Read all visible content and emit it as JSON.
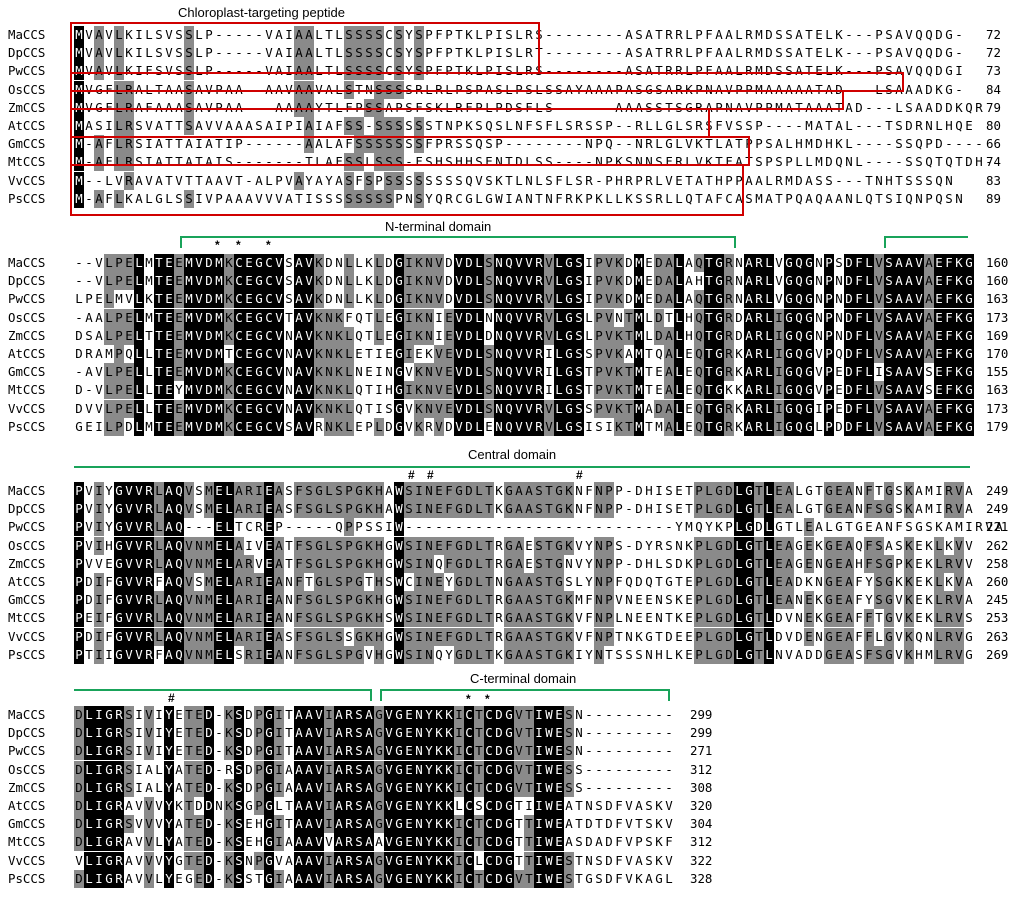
{
  "domain_labels": {
    "ctp": "Chloroplast-targeting peptide",
    "nterm": "N-terminal domain",
    "central": "Central domain",
    "cterm": "C-terminal domain"
  },
  "colors": {
    "black": "#000000",
    "gray": "#8a8a8a",
    "green": "#19a35a",
    "red": "#d00000"
  },
  "markers": {
    "star": "*",
    "hash": "#"
  },
  "blocks": [
    {
      "rows": [
        {
          "name": "MaCCS",
          "seq": "MVAVLKILSVSSLP-----VAIAALTLSSSSCSYSPFPTKLPISLRS--------ASATRRLPFAALRMDSSATELK---PSAVQQDG-",
          "end": "72"
        },
        {
          "name": "DpCCS",
          "seq": "MVAVLKILSVSSLP-----VAIAALTLSSSSCSYSPFPTKLPISLRT--------ASATRRLPFAALRMDSSATELK---PSAVQQDG-",
          "end": "72"
        },
        {
          "name": "PwCCS",
          "seq": "MVAVLKIFSVSSLP-----VAIAALTLSSSSCSYSPFPTKLPISLRS--------ASATRRLPFAALRMDSSATELK---PSAVQQDGI",
          "end": "73"
        },
        {
          "name": "OsCCS",
          "seq": "MVGFLRALTAASAVPAA--AAVAAVALSTNSSSSRLRLPSPASLPSLSSAYAAAPASGSARKPNAVPPMAAAAATAD---LSAAADKG-",
          "end": "84"
        },
        {
          "name": "ZmCCS",
          "seq": "MVGFLRAFAAASAVPAA---AAAAYTLFPSSAPSFSKLRFPLPDSFLS------AAASSTSGRAPNAVPPMATAAATAD---LSAADDKQR",
          "end": "79"
        },
        {
          "name": "AtCCS",
          "seq": "MASILRSVATTSAVVAAASAIPIAIAFSS-SSSSSSTNPKSQSLNFSFLSRSSP--RLLGLSRSFVSSP----MATAL---TSDRNLHQE",
          "end": "80"
        },
        {
          "name": "GmCCS",
          "seq": "M-AFLRSIATTAIATIP------AALAFSSSSSSSFPRSSQSP--------NPQ--NRLGLVKTLATPPSALHMDHKL----SSQPD----",
          "end": "66"
        },
        {
          "name": "MtCCS",
          "seq": "M-AFLRSIATTATAIS-------TLAFSSLSSS-FSHSHHSENTDLSS----NPKSNNSFRLVKTFATSPSPLLMDQNL----SSQTQTDH-",
          "end": "74"
        },
        {
          "name": "VvCCS",
          "seq": "M--LVRAVATVTTAAVT-ALPVAYAYASFSPSSSSSSSSQVSKTLNLSFLSR-PHRPRLVETATHPPAALRMDASS---TNHTSSSQN",
          "end": "83"
        },
        {
          "name": "PsCCS",
          "seq": "M-AFLKALGLSSIVPAAAVVVATISSSSSSSSPNSYQRCGLGWIANTNFRKPKLLKSSRLLQTAFCASMATPQAQAANLQTSIQNPQSN",
          "end": "89"
        }
      ]
    },
    {
      "rows": [
        {
          "name": "MaCCS",
          "seq": "--VLPELMTEEMVDMKCEGCVSAVKDNLLKLDGIKNVDVDLSNQVVRVLGSIPVKDMEDALAQTGRNARLVGQGNPSDFLVSAAVAEFKG",
          "end": "160"
        },
        {
          "name": "DpCCS",
          "seq": "--VLPELMTEEMVDMKCEGCVSAVKDNLLKLDGIKNVDVDLSNQVVRVLGSIPVKDMEDALAHTGRNARLVGQGNPNDFLVSAAVAEFKG",
          "end": "160"
        },
        {
          "name": "PwCCS",
          "seq": "LPELMVLKTEEMVDMKCEGCVSAVKDNLLKLDGIKNVDVDLSNQVVRVLGSIPVKDMEDALAQTGRNARLVGQGNPNDFLVSAAVAEFKG",
          "end": "163"
        },
        {
          "name": "OsCCS",
          "seq": "-AALPELMTEEMVDMKCEGCVTAVKNKFQTLEGIKNIEVDLNNQVVRVLGSLPVNTMLDTLHQTGRDARLIGQGNPNDFLVSAAVAEFKG",
          "end": "173"
        },
        {
          "name": "ZmCCS",
          "seq": "DSALPELTTEEMVDMKCEGCVNAVKNKLQTLEGIKNIEVDLDNQVVRVLGSLPVKTMLDALHQTGRDARLIGQGNPNDFLVSAAVAEFKG",
          "end": "169"
        },
        {
          "name": "AtCCS",
          "seq": "DRAMPQLLTEEMVDMTCEGCVNAVKNKLETIEGIEKVEVDLSNQVVRILGSSPVKAMTQALEQTGRKARLIGQGVPQDFLVSAAVAEFKG",
          "end": "170"
        },
        {
          "name": "GmCCS",
          "seq": "-AVLPELLTEEMVDMKCEGCVNAVKNKLNEINGVKNVEVDLSNQVVRILGSTPVKTMTEALEQTGRKARLIGQGVPEDFLISAAVSEFKG",
          "end": "155"
        },
        {
          "name": "MtCCS",
          "seq": "D-VLPELLTEYMVDMKCEGCVNAVKNKLQTIHGIKNVEVDLSNQVVRILGSTPVKTMTEALEQTGKKARLIGQGVPEDFLVSAAVSEFKG",
          "end": "163"
        },
        {
          "name": "VvCCS",
          "seq": "DVVLPELLTEEMVDMKCEGCVNAVKNKLQTISGVKNVEVDLSNQVVRVLGSSPVKTMADALEQTGRKARLIGQGIPEDFLVSAAVAEFKG",
          "end": "173"
        },
        {
          "name": "PsCCS",
          "seq": "GEILPDLMTEEMVDMKCEGCVSAVRNKLEPLDGVKRVDVDLENQVVRVLGSISIKTMTMALEQTGRKARLIGQGLPDDFLVSAAVAEFKG",
          "end": "179"
        }
      ]
    },
    {
      "rows": [
        {
          "name": "MaCCS",
          "seq": "PVIYGVVRLAQVSMELARIEASFSGLSPGKHAWSINEFGDLTKGAASTGKNFNPP-DHISETPLGDLGTLEALGTGEANFTGSKAMIRVA",
          "end": "249"
        },
        {
          "name": "DpCCS",
          "seq": "PVIYGVVRLAQVSMELARIEASFSGLSPGKHAWSINEFGDLTKGAASTGKNFNPP-DHISETPLGDLGTLEALGTGEANFSGSKAMIRVA",
          "end": "249"
        },
        {
          "name": "PwCCS",
          "seq": "PVIYGVVRLAQ---ELTCREP-----QPPSSIW---------------------------YMQYKPLGDLGTLEALGTGEANFSGSKAMIRVA",
          "end": "221"
        },
        {
          "name": "OsCCS",
          "seq": "PVIHGVVRLAQVNMELAIVEATFSGLSPGKHGWSINEFGDLTRGAESTGKVYNPS-DYRSNKPLGDLGTLEAGEKGEAQFSASKEKLKVV",
          "end": "262"
        },
        {
          "name": "ZmCCS",
          "seq": "PVVEGVVRLAQVNMELARVEATFSGLSPGKHGWSINQFGDLTRGAESTGNVYNPP-DHLSDKPLGDLGTLEAGENGEAHFSGPKEKLRVV",
          "end": "258"
        },
        {
          "name": "AtCCS",
          "seq": "PDIFGVVRFAQVSMELARIEANFTGLSPGTHSWCINEYGDLTNGAASTGSLYNPFQDQTGTEPLGDLGTLEADKNGEAFYSGKKEKLKVA",
          "end": "260"
        },
        {
          "name": "GmCCS",
          "seq": "PDIFGVVRLAQVNMELARIEANFSGLSPGKHGWSINEFGDLTRGAASTGKMFNPVNEENSKEPLGDLGTLEANEKGEAFYSGVKEKLRVA",
          "end": "245"
        },
        {
          "name": "MtCCS",
          "seq": "PEIFGVVRLAQVNMELARIEANFSGLSPGKHSWSINEFGDLTRGAASTGKVFNPLNEENTKEPLGDLGTLDVNEKGEAFFTGVKEKLRVS",
          "end": "253"
        },
        {
          "name": "VvCCS",
          "seq": "PDIFGVVRLAQVNMELARIEASFSGLSSGKHGWSINEFGDLTRGAASTGKVFNPTNKGTDEEPLGDLGTLDVDENGEAFFLGVKQNLRVG",
          "end": "263"
        },
        {
          "name": "PsCCS",
          "seq": "PTIIGVVRFAQVNMELSRIEANFSGLSPGVHGWSINQYGDLTKGAASTGKIYNTSSSNHLKEPLGDLGTLNVADDGEASFSGVKHMLRVG",
          "end": "269"
        }
      ]
    },
    {
      "rows": [
        {
          "name": "MaCCS",
          "seq": "DLIGRSIVIYETED-KSDPGITAAVIARSAGVGENYKKICTCDGVTIWESN---------",
          "end": "299"
        },
        {
          "name": "DpCCS",
          "seq": "DLIGRSIVIYETED-KSDPGITAAVIARSAGVGENYKKICTCDGVTIWESN---------",
          "end": "299"
        },
        {
          "name": "PwCCS",
          "seq": "DLIGRSIVIYETED-KSDPGITAAVIARSAGVGENYKKICTCDGVTIWESN---------",
          "end": "271"
        },
        {
          "name": "OsCCS",
          "seq": "DLIGRSIALYATED-RSDPGIAAAVIARSAGVGENYKKICTCDGVTIWESS---------",
          "end": "312"
        },
        {
          "name": "ZmCCS",
          "seq": "DLIGRSIALYATED-KSDPGIAAAVIARSAGVGENYKKICTCDGVTIWESS---------",
          "end": "308"
        },
        {
          "name": "AtCCS",
          "seq": "DLIGRAVVVYKTDDNKSGPGLTAAVIARSAGVGENYKKLCSCDGTIIWEATNSDFVASKV",
          "end": "320"
        },
        {
          "name": "GmCCS",
          "seq": "DLIGRSVVVYATED-KSEHGITAAVIARSAGVGENYKKICTCDGTTIWEATDTDFVTSKV",
          "end": "304"
        },
        {
          "name": "MtCCS",
          "seq": "DLIGRAVVLYATED-KSEHGIAAAVVARSAAVGENYKKICTCDGTTIWEASDADFVPSKF",
          "end": "312"
        },
        {
          "name": "VvCCS",
          "seq": "VLIGRAVVVYGTED-KSNPGVAAAVIARSAGVGENYKKICLCDGTTIWESTNSDFVASKV",
          "end": "322"
        },
        {
          "name": "PsCCS",
          "seq": "DLIGRAVVLYEGED-KSSTGIAAAVIARSAGVGENYKKICTCDGVTIWESTGSDFVKAGL",
          "end": "328"
        }
      ]
    }
  ]
}
